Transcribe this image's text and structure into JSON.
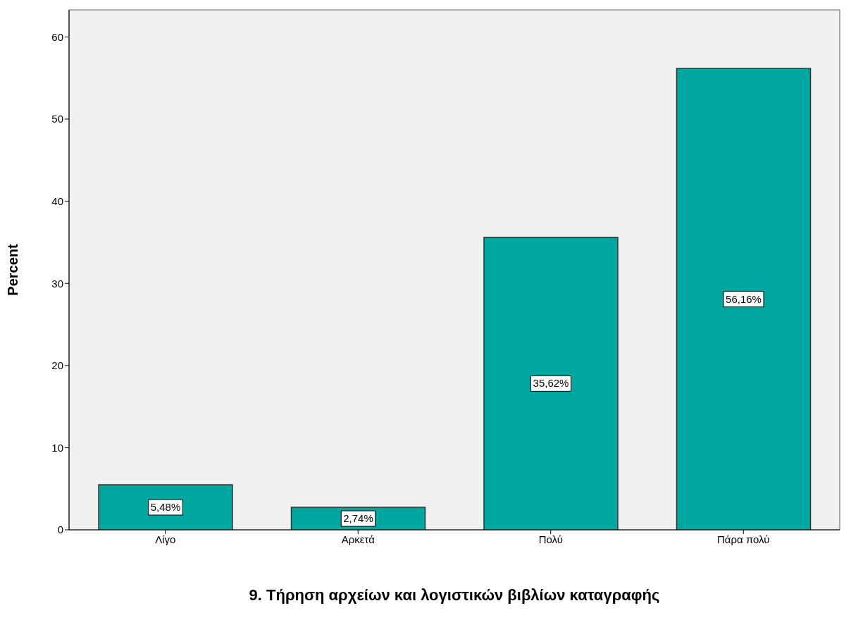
{
  "chart_data": {
    "type": "bar",
    "xlabel": "9. Τήρηση αρχείων και λογιστικών βιβλίων καταγραφής",
    "ylabel": "Percent",
    "categories": [
      "Λίγο",
      "Αρκετά",
      "Πολύ",
      "Πάρα πολύ"
    ],
    "values": [
      5.48,
      2.74,
      35.62,
      56.16
    ],
    "value_labels": [
      "5,48%",
      "2,74%",
      "35,62%",
      "56,16%"
    ],
    "color": "#00a6a0",
    "ylim": [
      0,
      63.3
    ],
    "yticks": [
      0,
      10,
      20,
      30,
      40,
      50,
      60
    ],
    "grid": false
  }
}
